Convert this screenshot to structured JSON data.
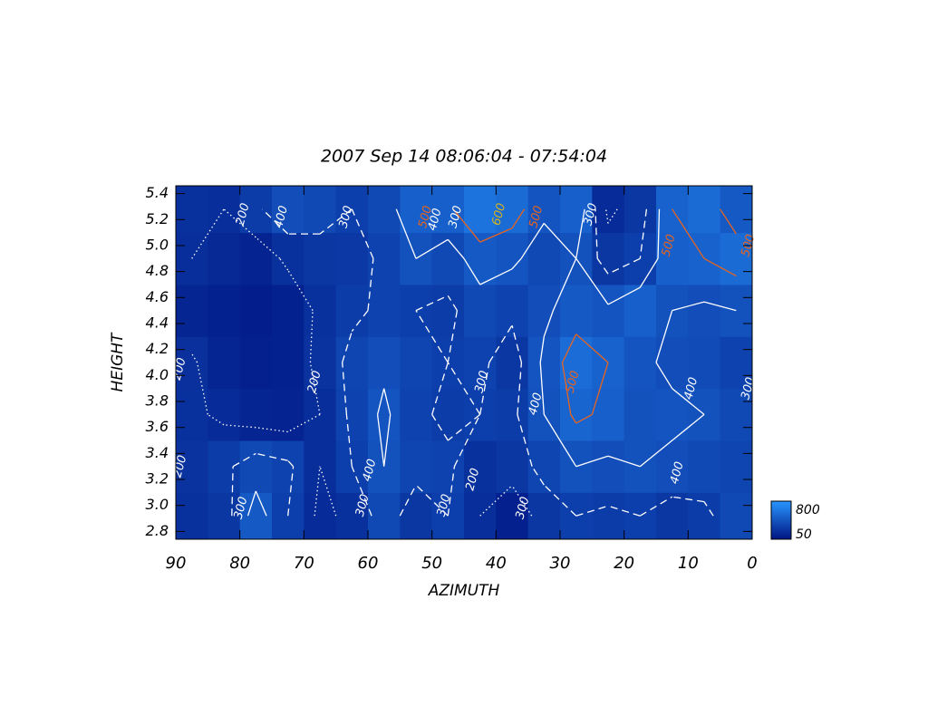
{
  "chart_data": {
    "type": "heatmap",
    "title": "2007 Sep 14    08:06:04 - 07:54:04",
    "x_label": "AZIMUTH",
    "y_label": "HEIGHT",
    "xlim": [
      90,
      0
    ],
    "ylim": [
      2.74,
      5.46
    ],
    "xticks": [
      90,
      80,
      70,
      60,
      50,
      40,
      30,
      20,
      10,
      0
    ],
    "yticks": [
      2.8,
      {
        "value": 3.0,
        "label": "3.0"
      },
      3.2,
      3.4,
      3.6,
      3.8,
      {
        "value": 4.0,
        "label": "4.0"
      },
      4.2,
      4.4,
      4.6,
      4.8,
      {
        "value": 5.0,
        "label": "5.0"
      },
      5.2,
      5.4
    ],
    "x_edges": [
      90,
      85,
      80,
      75,
      70,
      65,
      60,
      55,
      50,
      45,
      40,
      35,
      30,
      25,
      20,
      15,
      10,
      5,
      0
    ],
    "y_edges": [
      2.74,
      3.1,
      3.5,
      3.9,
      4.3,
      4.7,
      5.1,
      5.46
    ],
    "z": [
      [
        220,
        250,
        450,
        300,
        180,
        220,
        350,
        250,
        300,
        200,
        120,
        250,
        300,
        280,
        300,
        250,
        280,
        350
      ],
      [
        230,
        280,
        350,
        320,
        200,
        300,
        400,
        330,
        320,
        220,
        250,
        330,
        400,
        380,
        400,
        380,
        350,
        330
      ],
      [
        220,
        180,
        150,
        140,
        200,
        320,
        420,
        320,
        280,
        300,
        280,
        400,
        520,
        480,
        400,
        420,
        400,
        350
      ],
      [
        210,
        150,
        120,
        130,
        230,
        330,
        380,
        330,
        300,
        320,
        250,
        420,
        560,
        500,
        420,
        380,
        370,
        320
      ],
      [
        150,
        130,
        110,
        130,
        220,
        280,
        320,
        300,
        280,
        350,
        320,
        380,
        450,
        420,
        480,
        400,
        380,
        400
      ],
      [
        200,
        170,
        140,
        220,
        250,
        260,
        320,
        400,
        350,
        450,
        420,
        350,
        400,
        250,
        300,
        480,
        500,
        550
      ],
      [
        220,
        200,
        280,
        380,
        350,
        300,
        350,
        480,
        480,
        600,
        550,
        420,
        480,
        180,
        250,
        500,
        550,
        450
      ]
    ],
    "zlim": [
      50,
      800
    ],
    "colormap": [
      "#001482",
      "#2896ff"
    ],
    "contour_levels": [
      {
        "value": 200,
        "color": "#ffffff",
        "style": "dotted"
      },
      {
        "value": 300,
        "color": "#ffffff",
        "style": "dashed"
      },
      {
        "value": 400,
        "color": "#ffffff",
        "style": "solid"
      },
      {
        "value": 500,
        "color": "#e8641e",
        "style": "solid"
      },
      {
        "value": 600,
        "color": "#d2b41e",
        "style": "solid"
      }
    ],
    "contour_labels": [
      {
        "x": 79.5,
        "y": 5.24,
        "value": 200
      },
      {
        "x": 73.5,
        "y": 5.22,
        "value": 400
      },
      {
        "x": 63.4,
        "y": 5.22,
        "value": 300
      },
      {
        "x": 51,
        "y": 5.22,
        "value": 500
      },
      {
        "x": 49.5,
        "y": 5.2,
        "value": 400
      },
      {
        "x": 46.3,
        "y": 5.22,
        "value": 300
      },
      {
        "x": 39.5,
        "y": 5.24,
        "value": 600
      },
      {
        "x": 33.7,
        "y": 5.22,
        "value": 500
      },
      {
        "x": 25.2,
        "y": 5.24,
        "value": 300
      },
      {
        "x": 13,
        "y": 5.0,
        "value": 500
      },
      {
        "x": 0.6,
        "y": 5.0,
        "value": 500
      },
      {
        "x": 89.4,
        "y": 4.05,
        "value": 200
      },
      {
        "x": 68.3,
        "y": 3.95,
        "value": 200
      },
      {
        "x": 42.2,
        "y": 3.95,
        "value": 300
      },
      {
        "x": 28,
        "y": 3.95,
        "value": 500
      },
      {
        "x": 33.8,
        "y": 3.78,
        "value": 400
      },
      {
        "x": 9.5,
        "y": 3.9,
        "value": 400
      },
      {
        "x": 0.6,
        "y": 3.9,
        "value": 300
      },
      {
        "x": 89.3,
        "y": 3.3,
        "value": 200
      },
      {
        "x": 59.7,
        "y": 3.27,
        "value": 400
      },
      {
        "x": 43.6,
        "y": 3.2,
        "value": 200
      },
      {
        "x": 60.8,
        "y": 3.0,
        "value": 300
      },
      {
        "x": 48.1,
        "y": 3.0,
        "value": 300
      },
      {
        "x": 35.8,
        "y": 2.98,
        "value": 300
      },
      {
        "x": 11.7,
        "y": 3.25,
        "value": 400
      },
      {
        "x": 79.8,
        "y": 2.98,
        "value": 300
      }
    ]
  }
}
